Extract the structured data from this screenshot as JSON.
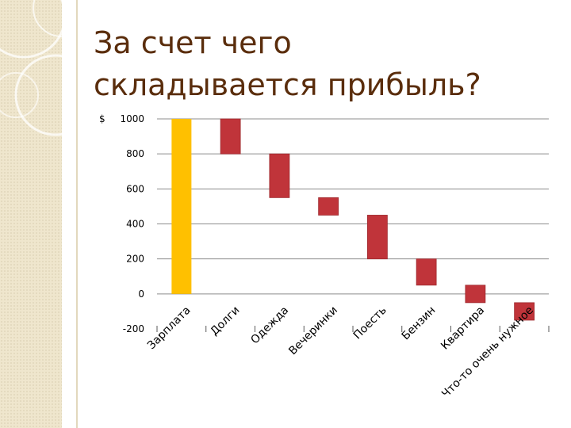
{
  "slide": {
    "title_line1": "За счет чего",
    "title_line2": "складывается прибыль?",
    "title_color": "#5a2d0c",
    "side_panel_color": "#efe6cd"
  },
  "chart_data": {
    "type": "bar",
    "subtype": "waterfall",
    "title": "",
    "xlabel": "",
    "ylabel": "",
    "currency_prefix": "$",
    "ylim": [
      -200,
      1000
    ],
    "yticks": [
      -200,
      0,
      200,
      400,
      600,
      800,
      1000
    ],
    "ytick_labels": [
      "-200",
      "0",
      "200",
      "400",
      "600",
      "800",
      "1000"
    ],
    "grid": true,
    "categories": [
      "Зарплата",
      "Долги",
      "Одежда",
      "Вечеринки",
      "Поесть",
      "Бензин",
      "Квартира",
      "Что-то очень нужное"
    ],
    "ranges": [
      [
        0,
        1000
      ],
      [
        800,
        1000
      ],
      [
        550,
        800
      ],
      [
        450,
        550
      ],
      [
        200,
        450
      ],
      [
        50,
        200
      ],
      [
        -50,
        50
      ],
      [
        -150,
        -50
      ]
    ],
    "values": [
      1000,
      -200,
      -250,
      -100,
      -250,
      -150,
      -100,
      -100
    ],
    "colors": {
      "income": "#ffc000",
      "expense": "#c0343a",
      "expense_stroke": "#9e2a2f",
      "gridline": "#8c8c8c",
      "axis": "#595959"
    }
  }
}
